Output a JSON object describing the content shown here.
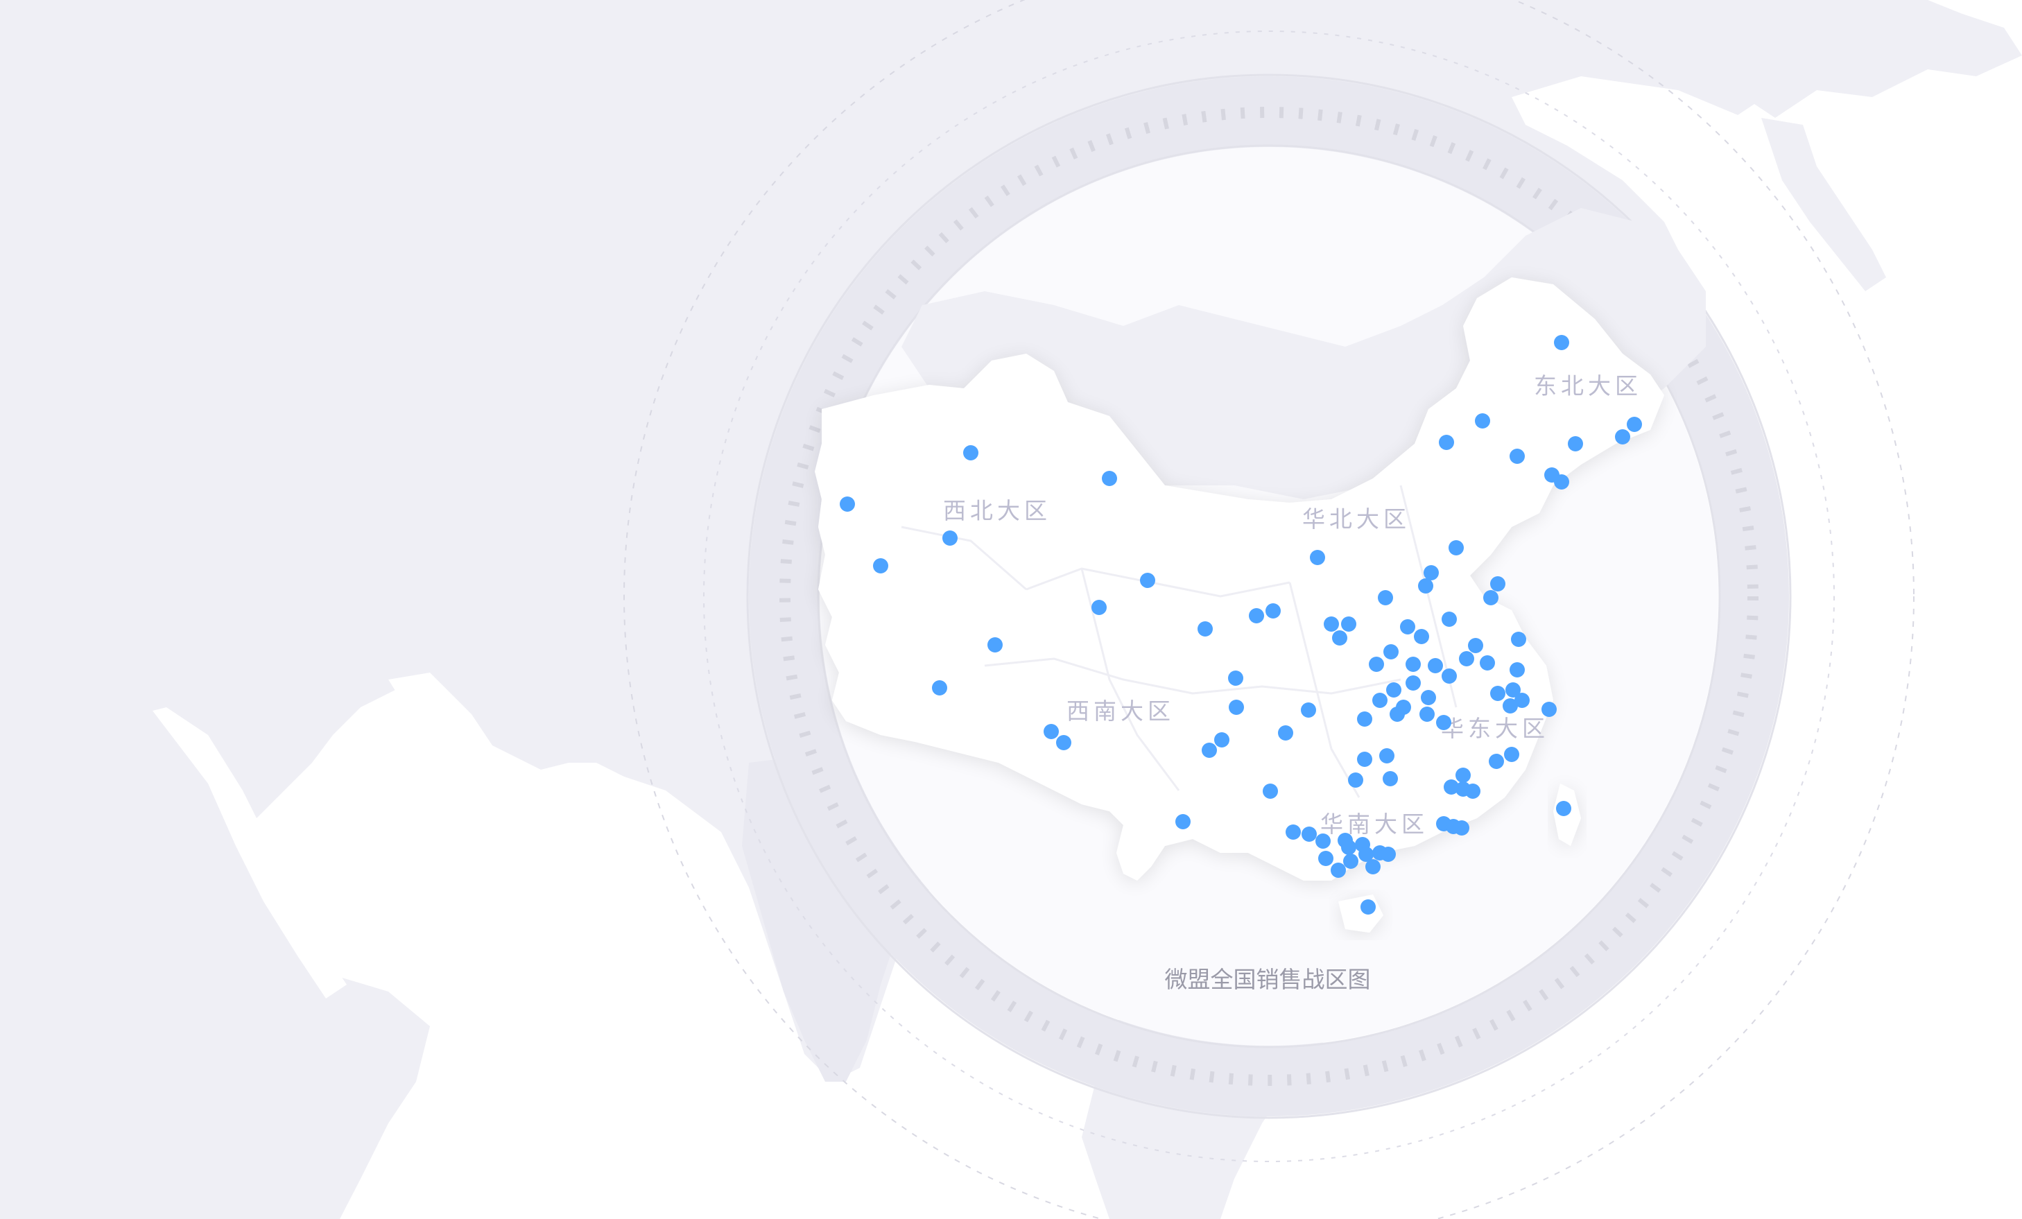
{
  "map": {
    "caption": "微盟全国销售战区图",
    "colors": {
      "background": "#ffffff",
      "landmass": "#efeff5",
      "china_fill": "#ffffff",
      "ring": "#e6e6ee",
      "tick": "#d9d9e2",
      "marker": "#4da3ff",
      "label": "#bcbcd0"
    },
    "regions": [
      {
        "id": "northwest",
        "label": "西北大区"
      },
      {
        "id": "north",
        "label": "华北大区"
      },
      {
        "id": "northeast",
        "label": "东北大区"
      },
      {
        "id": "southwest",
        "label": "西南大区"
      },
      {
        "id": "east",
        "label": "华东大区"
      },
      {
        "id": "south",
        "label": "华南大区"
      }
    ],
    "marker_count": 96
  }
}
